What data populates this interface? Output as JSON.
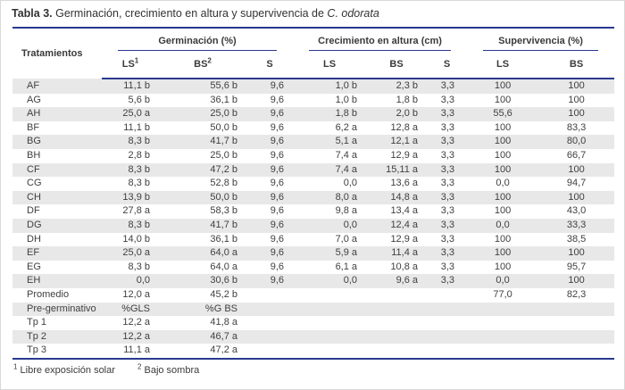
{
  "title": {
    "label": "Tabla 3.",
    "text": " Germinación, crecimiento en altura y supervivencia de ",
    "species": "C. odorata"
  },
  "table": {
    "treatments_header": "Tratamientos",
    "groups": [
      {
        "label": "Germinación (%)",
        "cols": [
          {
            "label": "LS",
            "sup": "1"
          },
          {
            "label": "BS",
            "sup": "2"
          },
          {
            "label": "S",
            "sup": ""
          }
        ]
      },
      {
        "label": "Crecimiento en altura (cm)",
        "cols": [
          {
            "label": "LS",
            "sup": ""
          },
          {
            "label": "BS",
            "sup": ""
          },
          {
            "label": "S",
            "sup": ""
          }
        ]
      },
      {
        "label": "Supervivencia (%)",
        "cols": [
          {
            "label": "LS",
            "sup": ""
          },
          {
            "label": "BS",
            "sup": ""
          }
        ]
      }
    ],
    "rows": [
      [
        "AF",
        "11,1 b",
        "55,6 b",
        "9,6",
        "1,0 b",
        "2,3 b",
        "3,3",
        "100",
        "100"
      ],
      [
        "AG",
        "5,6 b",
        "36,1 b",
        "9,6",
        "1,0 b",
        "1,8 b",
        "3,3",
        "100",
        "100"
      ],
      [
        "AH",
        "25,0 a",
        "25,0 b",
        "9,6",
        "1,8 b",
        "2,0 b",
        "3,3",
        "55,6",
        "100"
      ],
      [
        "BF",
        "11,1 b",
        "50,0 b",
        "9,6",
        "6,2 a",
        "12,8 a",
        "3,3",
        "100",
        "83,3"
      ],
      [
        "BG",
        "8,3 b",
        "41,7 b",
        "9,6",
        "5,1 a",
        "12,1 a",
        "3,3",
        "100",
        "80,0"
      ],
      [
        "BH",
        "2,8 b",
        "25,0 b",
        "9,6",
        "7,4 a",
        "12,9 a",
        "3,3",
        "100",
        "66,7"
      ],
      [
        "CF",
        "8,3 b",
        "47,2 b",
        "9,6",
        "7,4 a",
        "15,11 a",
        "3,3",
        "100",
        "100"
      ],
      [
        "CG",
        "8,3 b",
        "52,8 b",
        "9,6",
        "0,0",
        "13,6 a",
        "3,3",
        "0,0",
        "94,7"
      ],
      [
        "CH",
        "13,9 b",
        "50,0 b",
        "9,6",
        "8,0 a",
        "14,8 a",
        "3,3",
        "100",
        "100"
      ],
      [
        "DF",
        "27,8 a",
        "58,3 b",
        "9,6",
        "9,8 a",
        "13,4 a",
        "3,3",
        "100",
        "43,0"
      ],
      [
        "DG",
        "8,3 b",
        "41,7 b",
        "9,6",
        "0,0",
        "12,4 a",
        "3,3",
        "0,0",
        "33,3"
      ],
      [
        "DH",
        "14,0 b",
        "36,1 b",
        "9,6",
        "7,0 a",
        "12,9 a",
        "3,3",
        "100",
        "38,5"
      ],
      [
        "EF",
        "25,0 a",
        "64,0 a",
        "9,6",
        "5,9 a",
        "11,4 a",
        "3,3",
        "100",
        "100"
      ],
      [
        "EG",
        "8,3 b",
        "64,0 a",
        "9,6",
        "6,1 a",
        "10,8 a",
        "3,3",
        "100",
        "95,7"
      ],
      [
        "EH",
        "0,0",
        "30,6 b",
        "9,6",
        "0,0",
        "9,6 a",
        "3,3",
        "0,0",
        "100"
      ],
      [
        "Promedio",
        "12,0 a",
        "45,2 b",
        "",
        "",
        "",
        "",
        "77,0",
        "82,3"
      ],
      [
        "Pre-germinativo",
        "%GLS",
        "%G BS",
        "",
        "",
        "",
        "",
        "",
        ""
      ],
      [
        "Tp 1",
        "12,2 a",
        "41,8 a",
        "",
        "",
        "",
        "",
        "",
        ""
      ],
      [
        "Tp 2",
        "12,2 a",
        "46,7 a",
        "",
        "",
        "",
        "",
        "",
        ""
      ],
      [
        "Tp 3",
        "11,1 a",
        "47,2 a",
        "",
        "",
        "",
        "",
        "",
        ""
      ]
    ],
    "footnotes": [
      {
        "sup": "1",
        "text": "Libre exposición solar"
      },
      {
        "sup": "2",
        "text": "Bajo sombra"
      }
    ]
  },
  "colors": {
    "rule_blue": "#2B3990",
    "stripe_gray": "#E8E8E8",
    "text": "#404040",
    "frame": "#D9D9D9"
  }
}
